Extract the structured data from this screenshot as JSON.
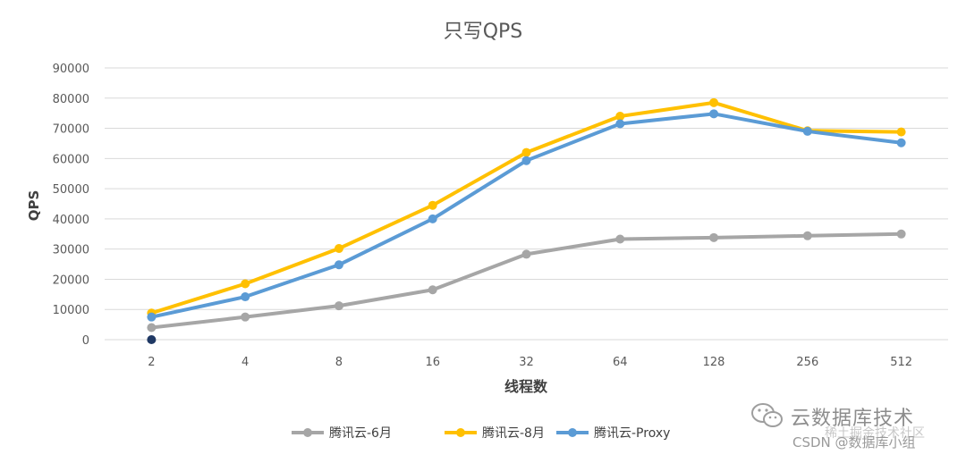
{
  "chart_data": {
    "type": "line",
    "title": "只写QPS",
    "xlabel": "线程数",
    "ylabel": "QPS",
    "categories": [
      "2",
      "4",
      "8",
      "16",
      "32",
      "64",
      "128",
      "256",
      "512"
    ],
    "ylim": [
      0,
      90000
    ],
    "yticks": [
      "0",
      "10000",
      "20000",
      "30000",
      "40000",
      "50000",
      "60000",
      "70000",
      "80000",
      "90000"
    ],
    "grid": true,
    "legend_position": "bottom",
    "series": [
      {
        "name": "腾讯云-6月",
        "color": "#a6a6a6",
        "values": [
          4000,
          7500,
          11200,
          16500,
          28300,
          33300,
          33800,
          34400,
          35000
        ]
      },
      {
        "name": "腾讯云-8月",
        "color": "#ffc000",
        "values": [
          8800,
          18500,
          30200,
          44500,
          62000,
          74000,
          78500,
          69200,
          68800
        ]
      },
      {
        "name": "腾讯云-Proxy",
        "color": "#5b9bd5",
        "values": [
          7500,
          14200,
          24800,
          40000,
          59300,
          71500,
          74800,
          69000,
          65200
        ]
      }
    ],
    "extra_point": {
      "category": "2",
      "value": 0,
      "color": "#1f3864"
    }
  },
  "watermark": {
    "line1": "云数据库技术",
    "line2": "CSDN @数据库小组",
    "overlay": "稀土掘金技术社区",
    "icon": "wechat-icon"
  }
}
